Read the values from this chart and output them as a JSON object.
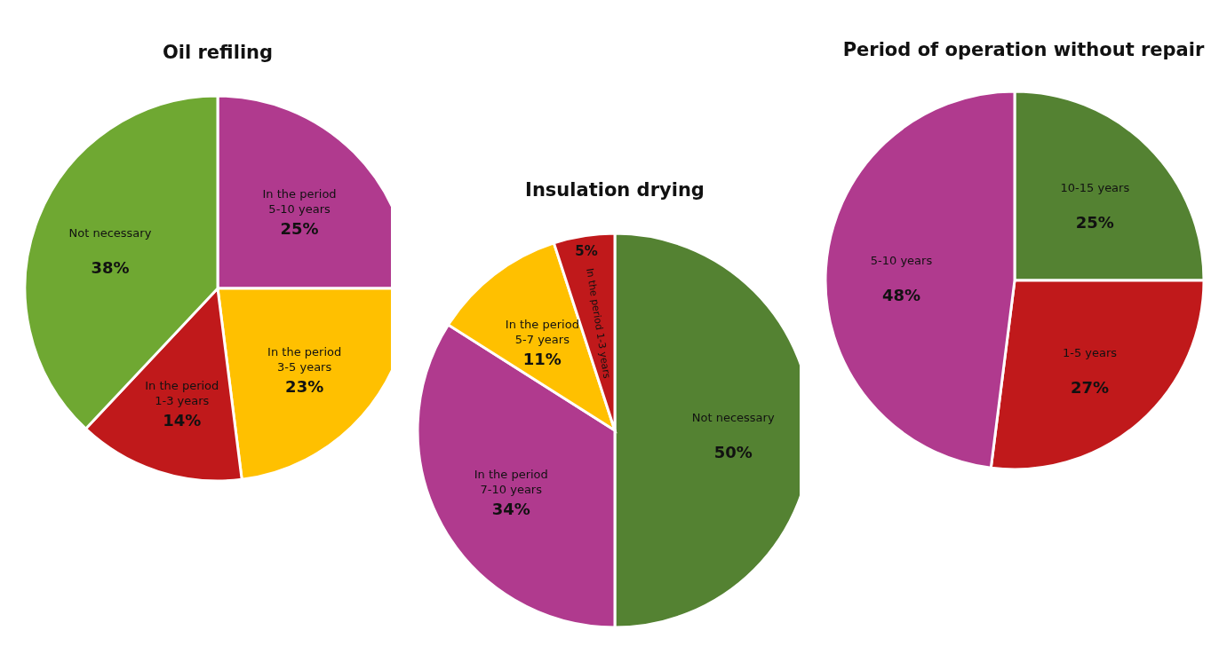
{
  "chart_data": [
    {
      "type": "pie",
      "title": "Oil refiling",
      "categories": [
        "In the period 5-10 years",
        "In the period 3-5 years",
        "In the period 1-3 years",
        "Not necessary"
      ],
      "values": [
        25,
        23,
        14,
        38
      ],
      "colors": [
        "#b03a8e",
        "#ffc000",
        "#c0191b",
        "#6fa832"
      ],
      "value_labels": [
        "25%",
        "23%",
        "14%",
        "38%"
      ]
    },
    {
      "type": "pie",
      "title": "Insulation drying",
      "categories": [
        "Not necessary",
        "In the period 7-10 years",
        "In the period 5-7 years",
        "In the period 1-3 years"
      ],
      "values": [
        50,
        34,
        11,
        5
      ],
      "colors": [
        "#548232",
        "#b03a8e",
        "#ffc000",
        "#c0191b"
      ],
      "value_labels": [
        "50%",
        "34%",
        "11%",
        "5%"
      ]
    },
    {
      "type": "pie",
      "title": "Period of operation without repair",
      "categories": [
        "10-15 years",
        "1-5 years",
        "5-10 years"
      ],
      "values": [
        25,
        27,
        48
      ],
      "colors": [
        "#548232",
        "#c0191b",
        "#b03a8e"
      ],
      "value_labels": [
        "25%",
        "27%",
        "48%"
      ]
    }
  ]
}
